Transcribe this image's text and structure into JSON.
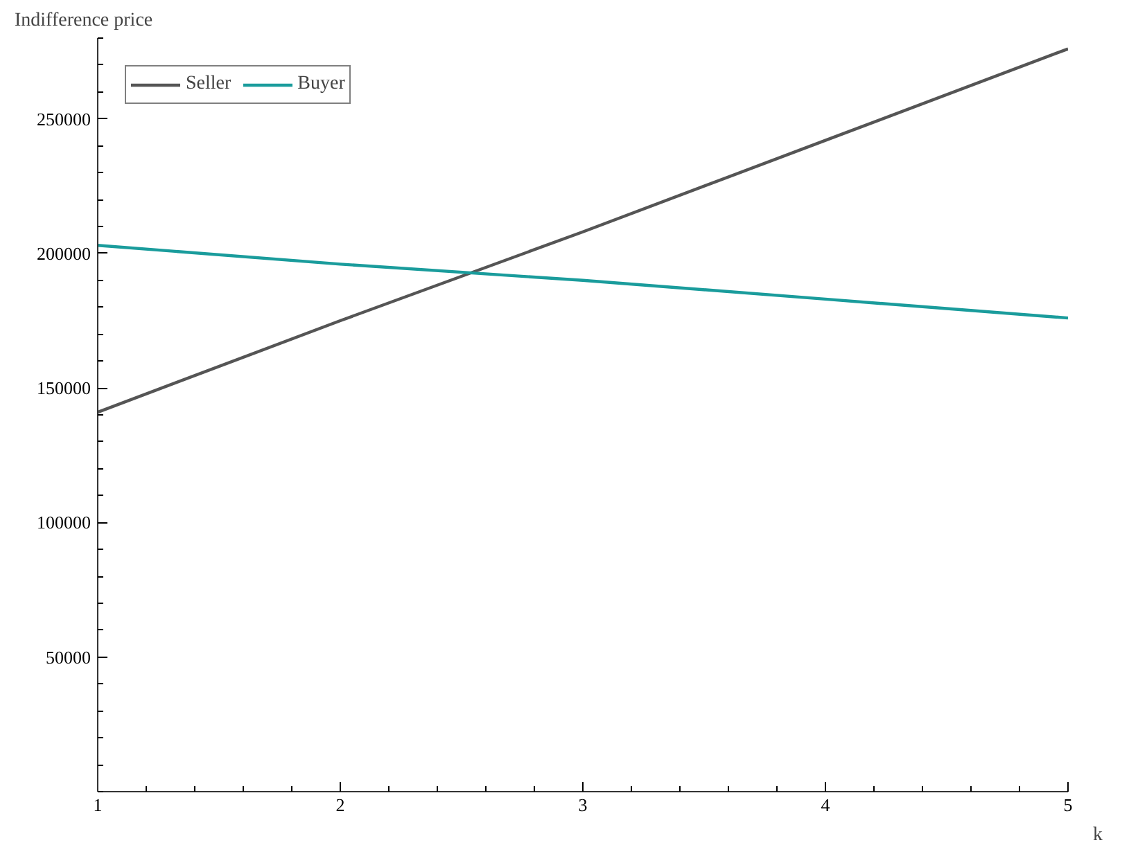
{
  "chart_data": {
    "type": "line",
    "xlabel": "k",
    "ylabel": "Indifference price",
    "x": [
      1,
      2,
      3,
      4,
      5
    ],
    "series": [
      {
        "name": "Seller",
        "color": "#555555",
        "values": [
          141000,
          175000,
          208000,
          242000,
          276000
        ]
      },
      {
        "name": "Buyer",
        "color": "#1a9c9c",
        "values": [
          203000,
          196000,
          190000,
          183000,
          176000
        ]
      }
    ],
    "xlim": [
      1,
      5
    ],
    "xticks": [
      1,
      2,
      3,
      4,
      5
    ],
    "ylim": [
      0,
      280000
    ],
    "yticks": [
      50000,
      100000,
      150000,
      200000,
      250000
    ],
    "grid": false,
    "legend": "top left",
    "line_style": "solid"
  }
}
